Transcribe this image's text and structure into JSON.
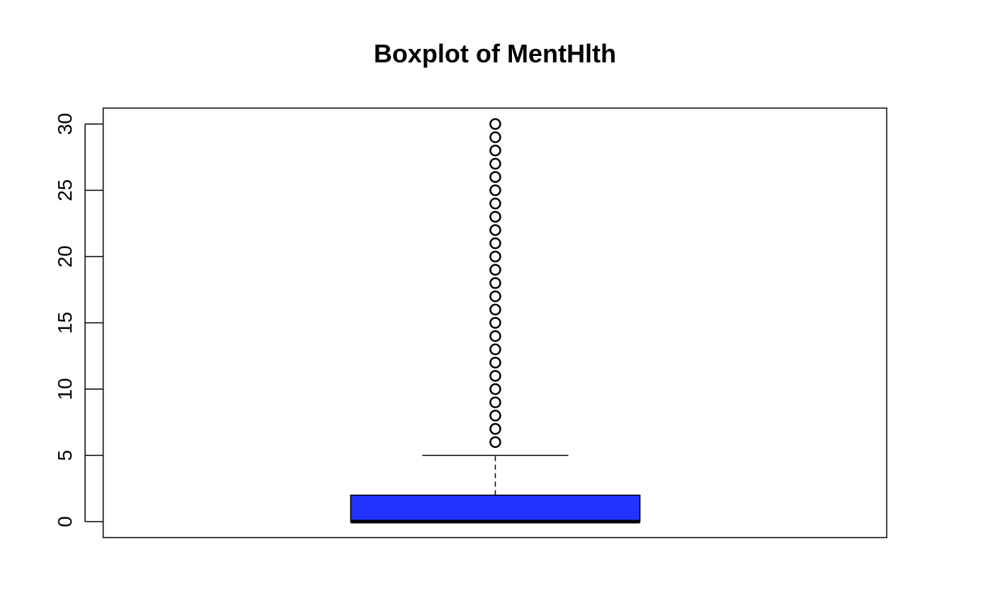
{
  "chart_data": {
    "type": "boxplot",
    "title": "Boxplot of MentHlth",
    "xlabel": "",
    "ylabel": "",
    "ylim": [
      -1.2,
      31.2
    ],
    "y_ticks": [
      0,
      5,
      10,
      15,
      20,
      25,
      30
    ],
    "y_tick_labels": [
      "0",
      "5",
      "10",
      "15",
      "20",
      "25",
      "30"
    ],
    "grid": false,
    "box": {
      "min_whisker": 0,
      "q1": 0,
      "median": 0,
      "q3": 2,
      "max_whisker": 5,
      "fill_color": "#2233FF"
    },
    "outliers": [
      6,
      7,
      8,
      9,
      10,
      11,
      12,
      13,
      14,
      15,
      16,
      17,
      18,
      19,
      20,
      21,
      22,
      23,
      24,
      25,
      26,
      27,
      28,
      29,
      30
    ]
  }
}
